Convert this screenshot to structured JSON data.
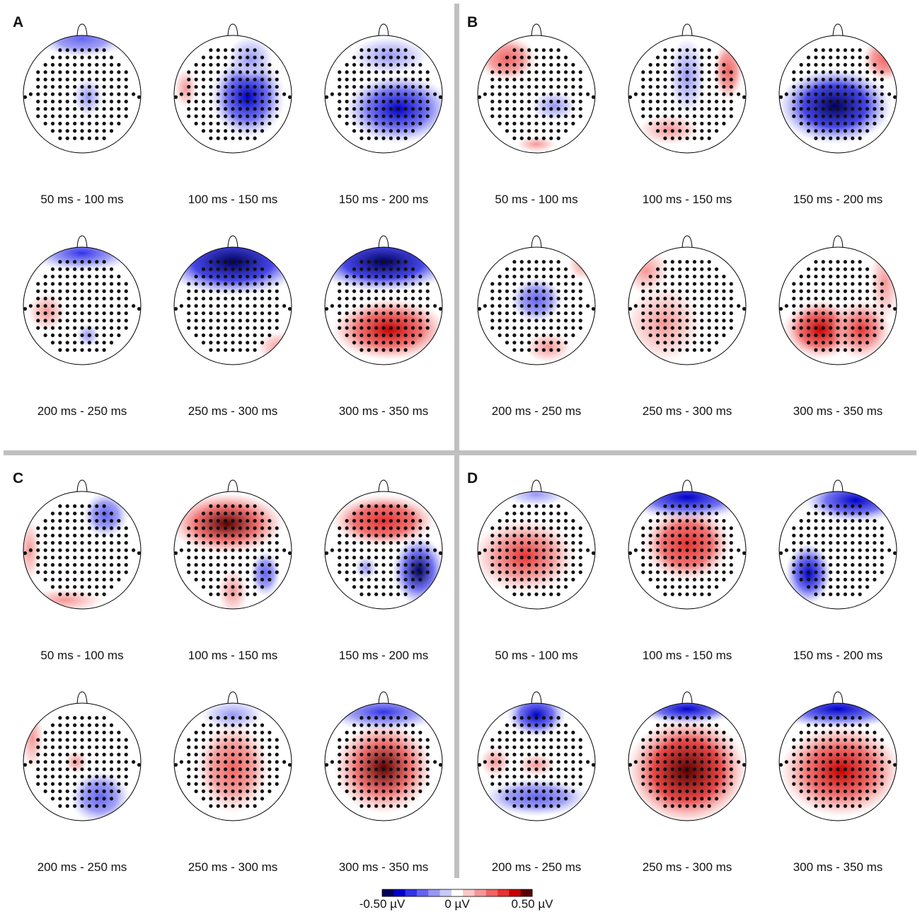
{
  "panels": [
    {
      "label": "A",
      "maps": [
        "50 ms - 100 ms",
        "100 ms - 150 ms",
        "150 ms - 200 ms",
        "200 ms - 250 ms",
        "250 ms - 300 ms",
        "300 ms - 350 ms"
      ]
    },
    {
      "label": "B",
      "maps": [
        "50 ms - 100 ms",
        "100 ms - 150 ms",
        "150 ms - 200 ms",
        "200 ms - 250 ms",
        "250 ms - 300 ms",
        "300 ms - 350 ms"
      ]
    },
    {
      "label": "C",
      "maps": [
        "50 ms - 100 ms",
        "100 ms - 150 ms",
        "150 ms - 200 ms",
        "200 ms - 250 ms",
        "250 ms - 300 ms",
        "300 ms - 350 ms"
      ]
    },
    {
      "label": "D",
      "maps": [
        "50 ms - 100 ms",
        "100 ms - 150 ms",
        "150 ms - 200 ms",
        "200 ms - 250 ms",
        "250 ms - 300 ms",
        "300 ms - 350 ms"
      ]
    }
  ],
  "colorbar": {
    "lim": [
      -0.5,
      0.5
    ],
    "ticks": [
      {
        "value": -0.5,
        "label": "-0.50 µV"
      },
      {
        "value": 0,
        "label": "0 µV"
      },
      {
        "value": 0.5,
        "label": "0.50 µV"
      }
    ],
    "colors": [
      "#00005a",
      "#0000c8",
      "#3232e6",
      "#6464f0",
      "#9696f5",
      "#c8c8fa",
      "#ffffff",
      "#fac8c8",
      "#f59696",
      "#f06464",
      "#e63232",
      "#c80000",
      "#5a0000"
    ]
  }
}
